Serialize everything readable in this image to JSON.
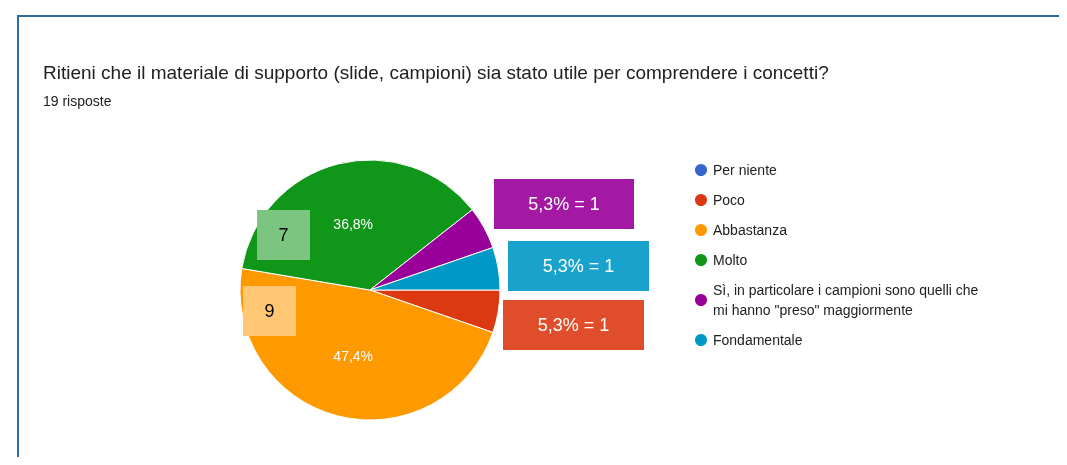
{
  "chart_data": {
    "type": "pie",
    "title": "Ritieni che il materiale di supporto (slide, campioni) sia stato utile per comprendere i concetti?",
    "subtitle": "19 risposte",
    "categories": [
      "Per niente",
      "Poco",
      "Abbastanza",
      "Molto",
      "Sì, in particolare i campioni sono quelli che mi hanno \"preso\" maggiormente",
      "Fondamentale"
    ],
    "values": [
      0,
      5.3,
      47.4,
      36.8,
      5.3,
      5.3
    ],
    "colors": [
      "#3366cc",
      "#dc3912",
      "#ff9900",
      "#109618",
      "#990099",
      "#0099c6"
    ],
    "value_labels": [
      null,
      null,
      "47,4%",
      "36,8%",
      null,
      null
    ],
    "annotations": [
      {
        "text": "5,3% = 1",
        "x": "Sì, in particolare i campioni sono quelli che mi hanno \"preso\" maggiormente"
      },
      {
        "text": "5,3% = 1",
        "x": "Fondamentale"
      },
      {
        "text": "5,3% = 1",
        "x": "Poco"
      },
      {
        "text": "7",
        "x": "Molto"
      },
      {
        "text": "9",
        "x": "Abbastanza"
      }
    ],
    "legend": "right"
  }
}
